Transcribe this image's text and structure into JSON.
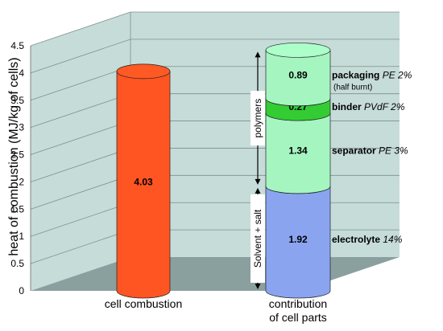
{
  "chart_data": {
    "type": "bar",
    "title": "",
    "ylabel": "heat of combustion (MJ/kg of cells)",
    "xlabel": "",
    "ylim": [
      0,
      4.5
    ],
    "yticks": [
      "0",
      "0.5",
      "1",
      "1.5",
      "2",
      "2.5",
      "3",
      "3.5",
      "4",
      "4.5"
    ],
    "grid": true,
    "categories": [
      "cell combustion",
      "contribution of cell parts"
    ],
    "category_lines": [
      [
        "cell combustion"
      ],
      [
        "contribution",
        "of cell parts"
      ]
    ],
    "bars": [
      {
        "category": "cell combustion",
        "segments": [
          {
            "value": 4.03,
            "label": "4.03",
            "color": "#ff5522"
          }
        ]
      },
      {
        "category": "contribution of cell parts",
        "segments": [
          {
            "value": 1.92,
            "label": "1.92",
            "color": "#8aa4f0",
            "name": "electrolyte",
            "detail": "14%"
          },
          {
            "value": 1.34,
            "label": "1.34",
            "color": "#a5f5c0",
            "name": "separator",
            "detail": "PE 3%"
          },
          {
            "value": 0.27,
            "label": "0.27",
            "color": "#33cc33",
            "name": "binder",
            "detail": "PVdF 2%"
          },
          {
            "value": 0.89,
            "label": "0.89",
            "color": "#a5f5c0",
            "name": "packaging",
            "detail": "PE 2%",
            "note": "(half burnt)"
          }
        ]
      }
    ],
    "brackets": [
      {
        "label": "Solvent + salt",
        "from": 0,
        "to": 1.92
      },
      {
        "label": "polymers",
        "from": 1.92,
        "to": 4.42
      }
    ],
    "colors": {
      "wall": "#c6dcd8",
      "floor": "#8aa09e",
      "grid": "#7f8f8c"
    }
  }
}
